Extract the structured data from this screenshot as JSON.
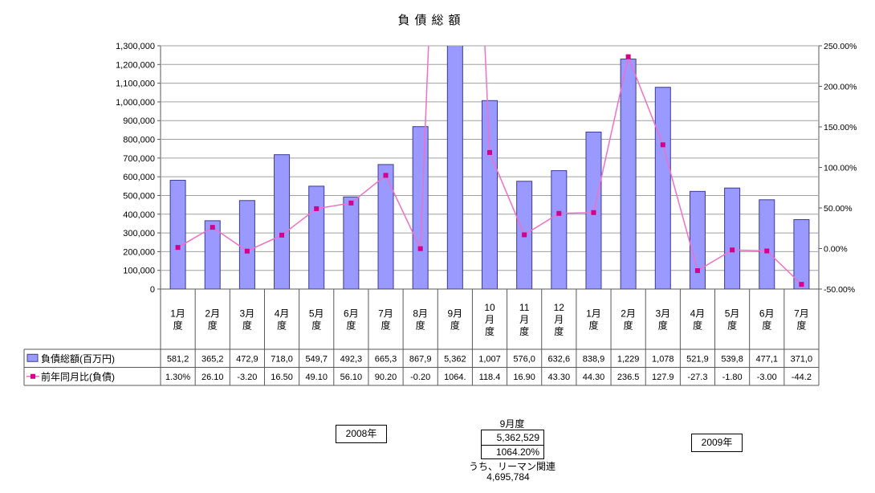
{
  "title": "負債総額",
  "chart_data": {
    "type": "combo-bar-line",
    "title": "負債総額",
    "categories": [
      "1月度",
      "2月度",
      "3月度",
      "4月度",
      "5月度",
      "6月度",
      "7月度",
      "8月度",
      "9月度",
      "10月度",
      "11月度",
      "12月度",
      "1月度",
      "2月度",
      "3月度",
      "4月度",
      "5月度",
      "6月度",
      "7月度"
    ],
    "category_lines": [
      [
        "1月",
        "度"
      ],
      [
        "2月",
        "度"
      ],
      [
        "3月",
        "度"
      ],
      [
        "4月",
        "度"
      ],
      [
        "5月",
        "度"
      ],
      [
        "6月",
        "度"
      ],
      [
        "7月",
        "度"
      ],
      [
        "8月",
        "度"
      ],
      [
        "9月",
        "度"
      ],
      [
        "10",
        "月",
        "度"
      ],
      [
        "11",
        "月",
        "度"
      ],
      [
        "12",
        "月",
        "度"
      ],
      [
        "1月",
        "度"
      ],
      [
        "2月",
        "度"
      ],
      [
        "3月",
        "度"
      ],
      [
        "4月",
        "度"
      ],
      [
        "5月",
        "度"
      ],
      [
        "6月",
        "度"
      ],
      [
        "7月",
        "度"
      ]
    ],
    "series": [
      {
        "name": "負債総額(百万円)",
        "type": "bar",
        "axis": "left",
        "values": [
          581200,
          365200,
          472900,
          718000,
          549700,
          492300,
          665300,
          867900,
          5362529,
          1007000,
          576000,
          632600,
          838900,
          1229000,
          1078000,
          521900,
          539800,
          477100,
          371000
        ],
        "table_labels": [
          "581,2",
          "365,2",
          "472,9",
          "718,0",
          "549,7",
          "492,3",
          "665,3",
          "867,9",
          "5,362",
          "1,007",
          "576,0",
          "632,6",
          "838,9",
          "1,229",
          "1,078",
          "521,9",
          "539,8",
          "477,1",
          "371,0"
        ]
      },
      {
        "name": "前年同月比(負債)",
        "type": "line",
        "axis": "right",
        "values": [
          1.3,
          26.1,
          -3.2,
          16.5,
          49.1,
          56.1,
          90.2,
          -0.2,
          1064.2,
          118.4,
          16.9,
          43.3,
          44.3,
          236.5,
          127.9,
          -27.3,
          -1.8,
          -3.0,
          -44.2
        ],
        "table_labels": [
          "1.30%",
          "26.10",
          "-3.20",
          "16.50",
          "49.10",
          "56.10",
          "90.20",
          "-0.20",
          "1064.",
          "118.4",
          "16.90",
          "43.30",
          "44.30",
          "236.5",
          "127.9",
          "-27.3",
          "-1.80",
          "-3.00",
          "-44.2"
        ]
      }
    ],
    "left_axis": {
      "min": 0,
      "max": 1300000,
      "step": 100000,
      "tick_labels": [
        "0",
        "100,000",
        "200,000",
        "300,000",
        "400,000",
        "500,000",
        "600,000",
        "700,000",
        "800,000",
        "900,000",
        "1,000,000",
        "1,100,000",
        "1,200,000",
        "1,300,000"
      ]
    },
    "right_axis": {
      "min": -50,
      "max": 250,
      "step": 50,
      "tick_labels": [
        "-50.00%",
        "0.00%",
        "50.00%",
        "100.00%",
        "150.00%",
        "200.00%",
        "250.00%"
      ]
    },
    "grid": true,
    "legend_position": "data-table-left"
  },
  "annotations": {
    "year_2008": "2008年",
    "year_2009": "2009年",
    "september_label": "9月度",
    "september_value": "5,362,529",
    "september_pct": "1064.20%",
    "lehman_label": "うち、リーマン関連",
    "lehman_value": "4,695,784"
  },
  "colors": {
    "bar_fill": "#9999FF",
    "bar_border": "#3C3C8F",
    "line": "#F070C8",
    "marker": "#D4008C",
    "grid": "#A0A0A0",
    "plot_border": "#595959",
    "table_border": "#595959"
  }
}
